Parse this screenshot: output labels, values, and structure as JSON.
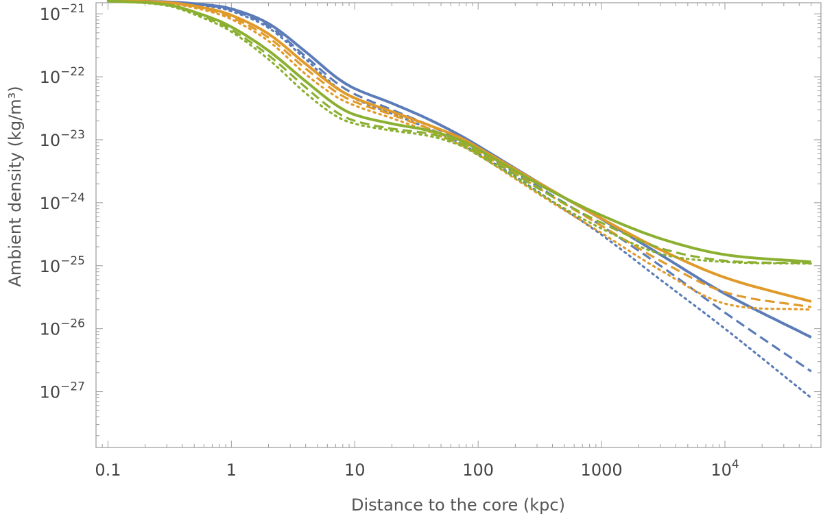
{
  "chart_data": {
    "type": "line",
    "title": "",
    "xlabel": "Distance to the core (kpc)",
    "ylabel": "Ambient density (kg/m³)",
    "xscale": "log",
    "yscale": "log",
    "xlim": [
      0.08,
      60000
    ],
    "ylim": [
      1.3e-28,
      1.5e-21
    ],
    "grid": false,
    "legend": "none",
    "xticks": [
      {
        "value": 0.1,
        "label": "0.1"
      },
      {
        "value": 1,
        "label": "1"
      },
      {
        "value": 10,
        "label": "10"
      },
      {
        "value": 100,
        "label": "100"
      },
      {
        "value": 1000,
        "label": "1000"
      },
      {
        "value": 10000,
        "label": "10",
        "exp": "4"
      }
    ],
    "yticks": [
      {
        "value": 1e-21,
        "label": "10",
        "exp": "−21"
      },
      {
        "value": 1e-22,
        "label": "10",
        "exp": "−22"
      },
      {
        "value": 1e-23,
        "label": "10",
        "exp": "−23"
      },
      {
        "value": 1e-24,
        "label": "10",
        "exp": "−24"
      },
      {
        "value": 1e-25,
        "label": "10",
        "exp": "−25"
      },
      {
        "value": 1e-26,
        "label": "10",
        "exp": "−26"
      },
      {
        "value": 1e-27,
        "label": "10",
        "exp": "−27"
      }
    ],
    "colors": {
      "blue": "#5b7cb8",
      "orange": "#e09a2a",
      "green": "#8bb031"
    },
    "series": [
      {
        "color": "blue",
        "style": "solid",
        "points": [
          [
            0.1,
            1.6e-21
          ],
          [
            0.3,
            1.55e-21
          ],
          [
            0.6,
            1.4e-21
          ],
          [
            1,
            1.2e-21
          ],
          [
            2,
            7e-22
          ],
          [
            4,
            2.5e-22
          ],
          [
            7,
            1e-22
          ],
          [
            10,
            6.5e-23
          ],
          [
            20,
            3.8e-23
          ],
          [
            40,
            2.1e-23
          ],
          [
            70,
            1.2e-23
          ],
          [
            100,
            8e-24
          ],
          [
            200,
            3.5e-24
          ],
          [
            400,
            1.55e-24
          ],
          [
            1000,
            5.5e-25
          ],
          [
            3000,
            1.5e-25
          ],
          [
            10000,
            3.6e-26
          ],
          [
            50000,
            7.3e-27
          ]
        ]
      },
      {
        "color": "blue",
        "style": "dashed",
        "points": [
          [
            0.1,
            1.6e-21
          ],
          [
            0.3,
            1.55e-21
          ],
          [
            0.6,
            1.38e-21
          ],
          [
            1,
            1.15e-21
          ],
          [
            2,
            6.4e-22
          ],
          [
            4,
            2.1e-22
          ],
          [
            7,
            8.2e-23
          ],
          [
            10,
            5.3e-23
          ],
          [
            20,
            3e-23
          ],
          [
            40,
            1.7e-23
          ],
          [
            70,
            1e-23
          ],
          [
            100,
            6.8e-24
          ],
          [
            200,
            3e-24
          ],
          [
            400,
            1.3e-24
          ],
          [
            1000,
            4.3e-25
          ],
          [
            3000,
            1e-25
          ],
          [
            10000,
            1.8e-26
          ],
          [
            50000,
            2.1e-27
          ]
        ]
      },
      {
        "color": "blue",
        "style": "dotted",
        "points": [
          [
            0.1,
            1.6e-21
          ],
          [
            0.3,
            1.55e-21
          ],
          [
            0.6,
            1.35e-21
          ],
          [
            1,
            1.1e-21
          ],
          [
            2,
            6e-22
          ],
          [
            4,
            1.9e-22
          ],
          [
            7,
            7e-23
          ],
          [
            10,
            4.5e-23
          ],
          [
            20,
            2.6e-23
          ],
          [
            40,
            1.5e-23
          ],
          [
            70,
            9e-24
          ],
          [
            100,
            6e-24
          ],
          [
            200,
            2.6e-24
          ],
          [
            400,
            1.05e-24
          ],
          [
            1000,
            3.1e-25
          ],
          [
            3000,
            6e-26
          ],
          [
            10000,
            1e-26
          ],
          [
            50000,
            8e-28
          ]
        ]
      },
      {
        "color": "orange",
        "style": "solid",
        "points": [
          [
            0.1,
            1.6e-21
          ],
          [
            0.3,
            1.52e-21
          ],
          [
            0.6,
            1.25e-21
          ],
          [
            1,
            9.5e-22
          ],
          [
            2,
            4.8e-22
          ],
          [
            4,
            1.6e-22
          ],
          [
            7,
            6.8e-23
          ],
          [
            10,
            4.6e-23
          ],
          [
            20,
            2.8e-23
          ],
          [
            40,
            1.7e-23
          ],
          [
            70,
            1.1e-23
          ],
          [
            100,
            7.5e-24
          ],
          [
            200,
            3.4e-24
          ],
          [
            400,
            1.55e-24
          ],
          [
            1000,
            5.6e-25
          ],
          [
            3000,
            1.8e-25
          ],
          [
            10000,
            6.5e-26
          ],
          [
            50000,
            2.7e-26
          ]
        ]
      },
      {
        "color": "orange",
        "style": "dashed",
        "points": [
          [
            0.1,
            1.6e-21
          ],
          [
            0.3,
            1.5e-21
          ],
          [
            0.6,
            1.2e-21
          ],
          [
            1,
            8.8e-22
          ],
          [
            2,
            4.2e-22
          ],
          [
            4,
            1.35e-22
          ],
          [
            7,
            5.8e-23
          ],
          [
            10,
            4e-23
          ],
          [
            20,
            2.5e-23
          ],
          [
            40,
            1.5e-23
          ],
          [
            70,
            9.5e-24
          ],
          [
            100,
            6.5e-24
          ],
          [
            200,
            2.9e-24
          ],
          [
            400,
            1.25e-24
          ],
          [
            1000,
            4.3e-25
          ],
          [
            3000,
            1.2e-25
          ],
          [
            10000,
            3.8e-26
          ],
          [
            50000,
            2.2e-26
          ]
        ]
      },
      {
        "color": "orange",
        "style": "dotted",
        "points": [
          [
            0.1,
            1.6e-21
          ],
          [
            0.3,
            1.48e-21
          ],
          [
            0.6,
            1.15e-21
          ],
          [
            1,
            8.2e-22
          ],
          [
            2,
            3.7e-22
          ],
          [
            4,
            1.1e-22
          ],
          [
            7,
            4.9e-23
          ],
          [
            10,
            3.5e-23
          ],
          [
            20,
            2.2e-23
          ],
          [
            40,
            1.35e-23
          ],
          [
            70,
            8.5e-24
          ],
          [
            100,
            5.8e-24
          ],
          [
            200,
            2.4e-24
          ],
          [
            400,
            1e-24
          ],
          [
            1000,
            3.3e-25
          ],
          [
            3000,
            8.5e-26
          ],
          [
            10000,
            2.5e-26
          ],
          [
            50000,
            2e-26
          ]
        ]
      },
      {
        "color": "green",
        "style": "solid",
        "points": [
          [
            0.1,
            1.6e-21
          ],
          [
            0.3,
            1.4e-21
          ],
          [
            0.6,
            9.5e-22
          ],
          [
            1,
            6.2e-22
          ],
          [
            2,
            2.6e-22
          ],
          [
            4,
            8.5e-23
          ],
          [
            7,
            3.6e-23
          ],
          [
            10,
            2.5e-23
          ],
          [
            20,
            1.8e-23
          ],
          [
            40,
            1.4e-23
          ],
          [
            70,
            1e-23
          ],
          [
            100,
            7e-24
          ],
          [
            200,
            3.2e-24
          ],
          [
            400,
            1.5e-24
          ],
          [
            1000,
            6.3e-25
          ],
          [
            3000,
            2.7e-25
          ],
          [
            10000,
            1.5e-25
          ],
          [
            50000,
            1.15e-25
          ]
        ]
      },
      {
        "color": "green",
        "style": "dashed",
        "points": [
          [
            0.1,
            1.6e-21
          ],
          [
            0.3,
            1.38e-21
          ],
          [
            0.6,
            9e-22
          ],
          [
            1,
            5.6e-22
          ],
          [
            2,
            2.2e-22
          ],
          [
            4,
            6.8e-23
          ],
          [
            7,
            2.8e-23
          ],
          [
            10,
            2e-23
          ],
          [
            20,
            1.5e-23
          ],
          [
            40,
            1.25e-23
          ],
          [
            70,
            9e-24
          ],
          [
            100,
            6.2e-24
          ],
          [
            200,
            2.8e-24
          ],
          [
            400,
            1.25e-24
          ],
          [
            1000,
            4.8e-25
          ],
          [
            3000,
            1.9e-25
          ],
          [
            10000,
            1.2e-25
          ],
          [
            50000,
            1.1e-25
          ]
        ]
      },
      {
        "color": "green",
        "style": "dotted",
        "points": [
          [
            0.1,
            1.6e-21
          ],
          [
            0.3,
            1.35e-21
          ],
          [
            0.6,
            8.5e-22
          ],
          [
            1,
            5.2e-22
          ],
          [
            2,
            1.9e-22
          ],
          [
            4,
            5.5e-23
          ],
          [
            7,
            2.4e-23
          ],
          [
            10,
            1.8e-23
          ],
          [
            20,
            1.4e-23
          ],
          [
            40,
            1.15e-23
          ],
          [
            70,
            8.3e-24
          ],
          [
            100,
            5.7e-24
          ],
          [
            200,
            2.5e-24
          ],
          [
            400,
            1.05e-24
          ],
          [
            1000,
            3.9e-25
          ],
          [
            3000,
            1.55e-25
          ],
          [
            10000,
            1.15e-25
          ],
          [
            50000,
            1.08e-25
          ]
        ]
      }
    ]
  }
}
